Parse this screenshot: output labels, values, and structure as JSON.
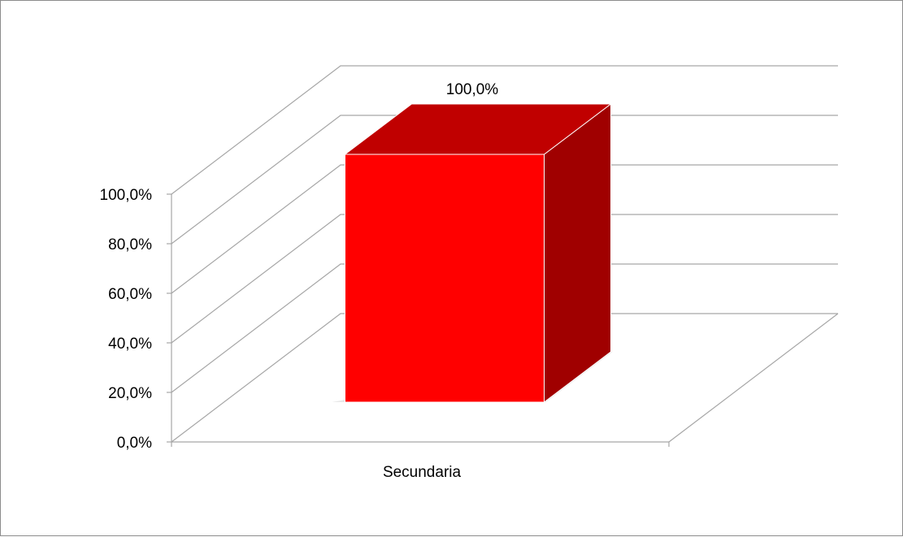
{
  "chart_data": {
    "type": "bar",
    "style": "3d-column",
    "categories": [
      "Secundaria"
    ],
    "values": [
      100.0
    ],
    "data_labels": [
      "100,0%"
    ],
    "y_ticks": [
      0,
      20,
      40,
      60,
      80,
      100
    ],
    "y_tick_labels": [
      "0,0%",
      "20,0%",
      "40,0%",
      "60,0%",
      "80,0%",
      "100,0%"
    ],
    "ylim": [
      0,
      100
    ],
    "grid": true,
    "legend": "none",
    "colors": {
      "bar_front": "#ff0000",
      "bar_top": "#c00000",
      "bar_side": "#a00000",
      "gridline": "#a6a6a6",
      "frame": "#8c8c8c"
    }
  }
}
